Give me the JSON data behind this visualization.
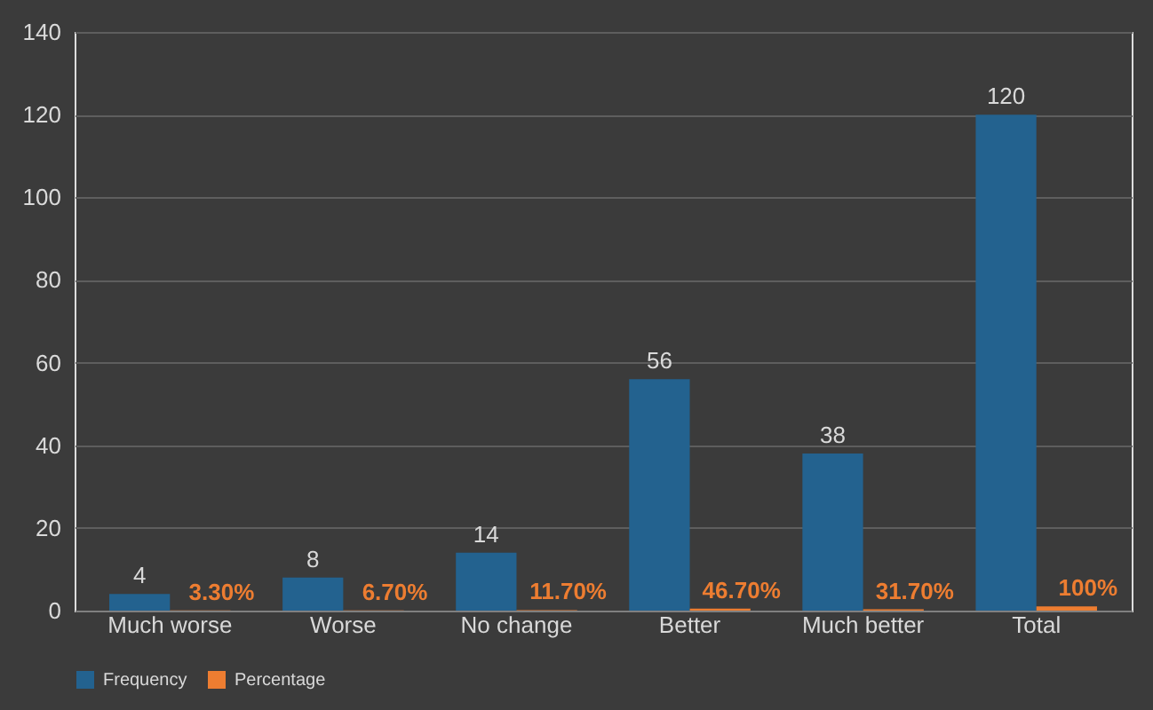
{
  "chart_data": {
    "type": "bar",
    "categories": [
      "Much worse",
      "Worse",
      "No change",
      "Better",
      "Much better",
      "Total"
    ],
    "series": [
      {
        "name": "Frequency",
        "color": "#23628f",
        "values": [
          4,
          8,
          14,
          56,
          38,
          120
        ],
        "value_labels": [
          "4",
          "8",
          "14",
          "56",
          "38",
          "120"
        ]
      },
      {
        "name": "Percentage",
        "color": "#ed7d31",
        "values": [
          0.033,
          0.067,
          0.117,
          0.467,
          0.317,
          1
        ],
        "value_labels": [
          "3.30%",
          "6.70%",
          "11.70%",
          "46.70%",
          "31.70%",
          "100%"
        ]
      }
    ],
    "ylim": [
      0,
      140
    ],
    "yticks": [
      0,
      20,
      40,
      60,
      80,
      100,
      120,
      140
    ],
    "grid": "y",
    "legend": "bottom"
  }
}
